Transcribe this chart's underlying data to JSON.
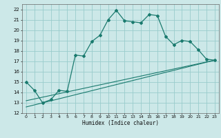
{
  "xlabel": "Humidex (Indice chaleur)",
  "bg_color": "#cce8e8",
  "grid_color": "#99cccc",
  "line_color": "#1a7a6e",
  "xlim": [
    -0.5,
    23.5
  ],
  "ylim": [
    12,
    22.5
  ],
  "xticks": [
    0,
    1,
    2,
    3,
    4,
    5,
    6,
    7,
    8,
    9,
    10,
    11,
    12,
    13,
    14,
    15,
    16,
    17,
    18,
    19,
    20,
    21,
    22,
    23
  ],
  "yticks": [
    12,
    13,
    14,
    15,
    16,
    17,
    18,
    19,
    20,
    21,
    22
  ],
  "main_line_x": [
    0,
    1,
    2,
    3,
    4,
    5,
    6,
    7,
    8,
    9,
    10,
    11,
    12,
    13,
    14,
    15,
    16,
    17,
    18,
    19,
    20,
    21,
    22,
    23
  ],
  "main_line_y": [
    15.0,
    14.2,
    13.0,
    13.3,
    14.2,
    14.1,
    17.6,
    17.5,
    18.9,
    19.5,
    21.0,
    21.9,
    20.9,
    20.8,
    20.7,
    21.5,
    21.4,
    19.4,
    18.6,
    19.0,
    18.9,
    18.1,
    17.2,
    17.1
  ],
  "line2_x": [
    0,
    23
  ],
  "line2_y": [
    13.2,
    17.1
  ],
  "line3_x": [
    0,
    23
  ],
  "line3_y": [
    12.6,
    17.1
  ]
}
